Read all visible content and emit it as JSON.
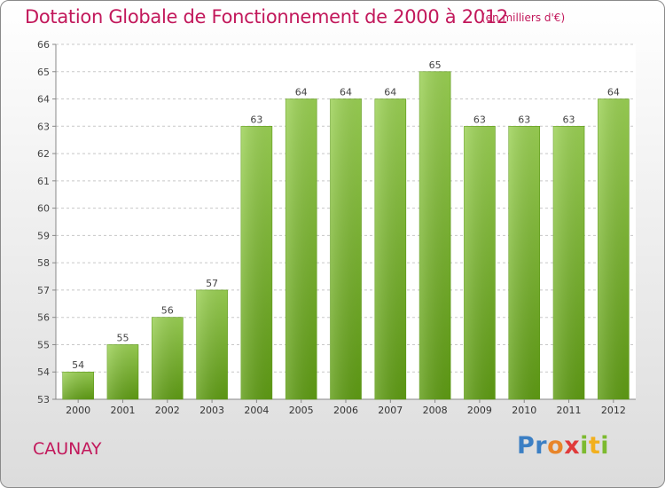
{
  "chart_data": {
    "type": "bar",
    "title": "Dotation Globale de Fonctionnement de 2000 à 2012",
    "subtitle": "(en milliers d'€)",
    "categories": [
      "2000",
      "2001",
      "2002",
      "2003",
      "2004",
      "2005",
      "2006",
      "2007",
      "2008",
      "2009",
      "2010",
      "2011",
      "2012"
    ],
    "values": [
      54,
      55,
      56,
      57,
      63,
      64,
      64,
      64,
      65,
      63,
      63,
      63,
      64
    ],
    "ylim": [
      53,
      66
    ],
    "yticks": [
      53,
      54,
      55,
      56,
      57,
      58,
      59,
      60,
      61,
      62,
      63,
      64,
      65,
      66
    ],
    "xlabel": "",
    "ylabel": "",
    "grid": true,
    "bar_color": "#7fbf2a"
  },
  "commune": "CAUNAY",
  "logo": {
    "letters": [
      "P",
      "r",
      "o",
      "x",
      "i",
      "t",
      "i"
    ],
    "colors": [
      "#3b7fc4",
      "#3b7fc4",
      "#e8852a",
      "#e03a3a",
      "#7cba2f",
      "#f2b01e",
      "#7cba2f"
    ]
  }
}
